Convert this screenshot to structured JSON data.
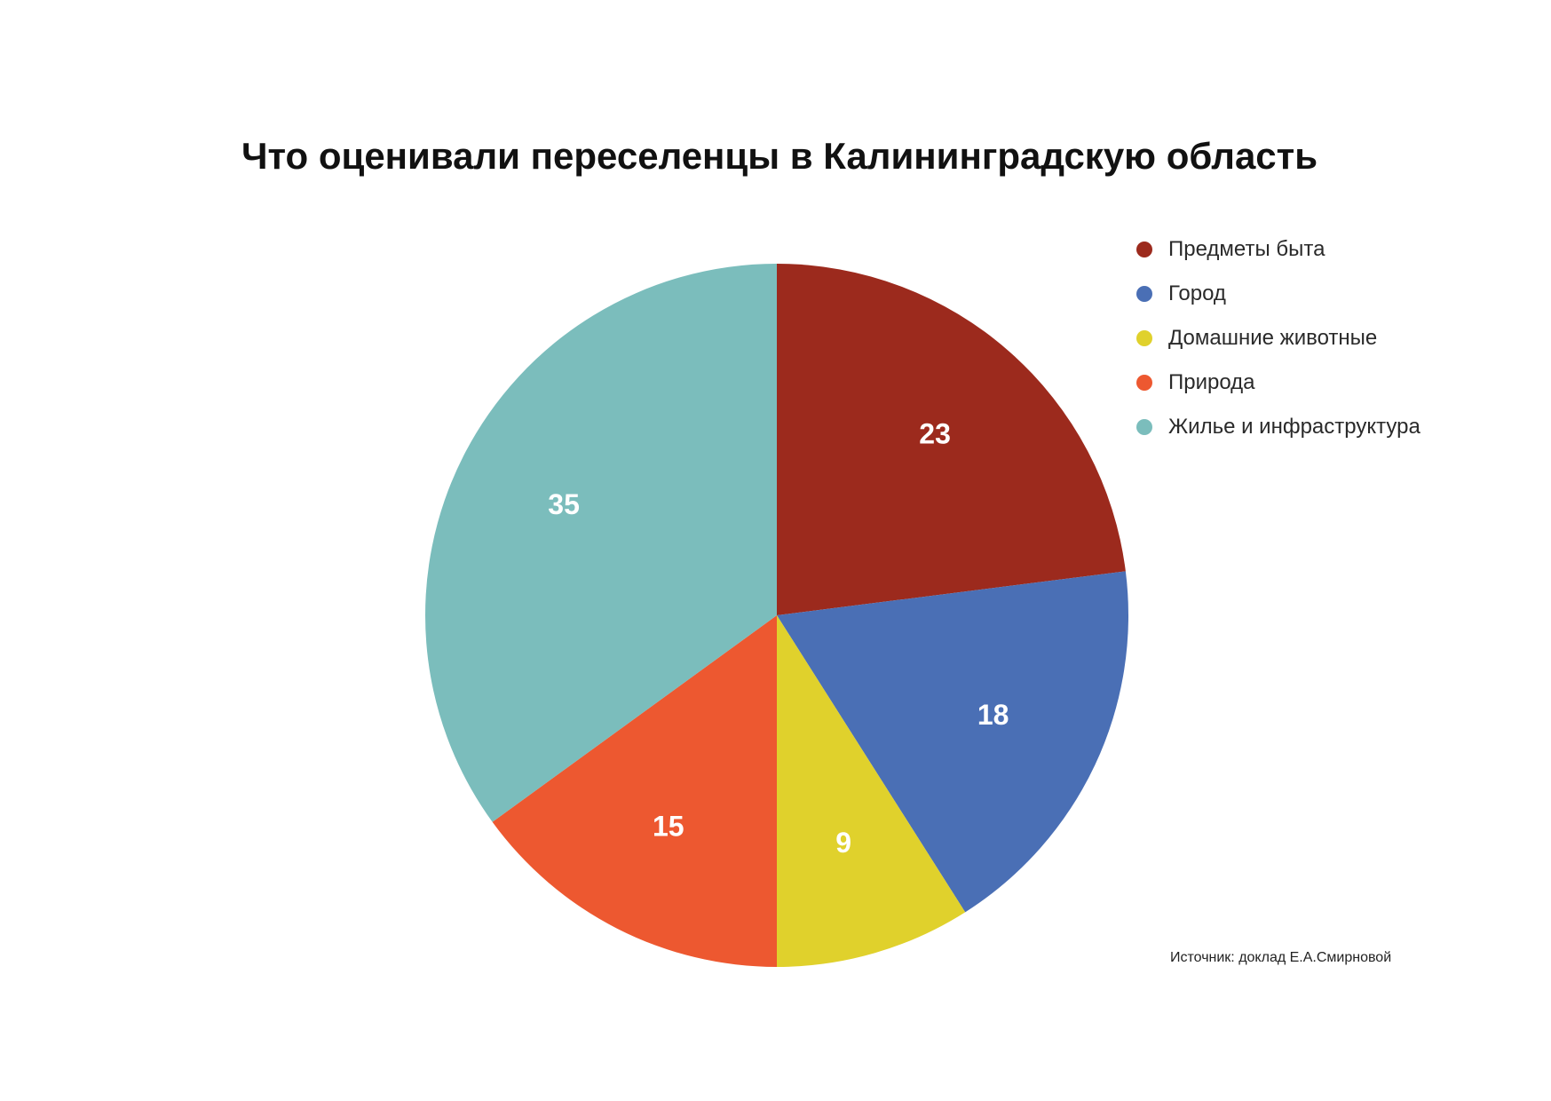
{
  "chart_data": {
    "type": "pie",
    "title": "Что оценивали переселенцы в Калининградскую область",
    "slices": [
      {
        "name": "Предметы быта",
        "value": 23,
        "color": "#9c2a1d"
      },
      {
        "name": "Город",
        "value": 18,
        "color": "#4a6fb5"
      },
      {
        "name": "Домашние животные",
        "value": 9,
        "color": "#e0d12c"
      },
      {
        "name": "Природа",
        "value": 15,
        "color": "#ed5830"
      },
      {
        "name": "Жилье и инфраструктура",
        "value": 35,
        "color": "#7bbdbc"
      }
    ],
    "legend_position": "top-right",
    "source": "Источник: доклад Е.А.Смирновой"
  }
}
